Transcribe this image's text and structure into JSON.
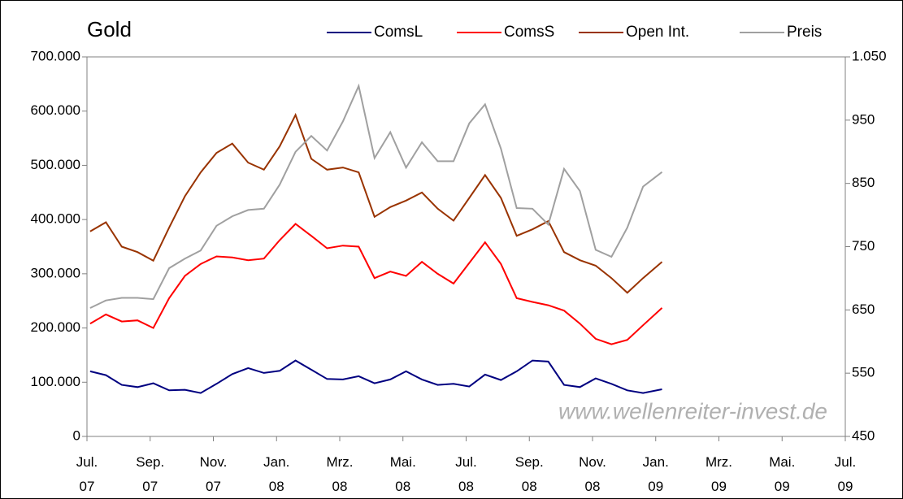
{
  "chart_data": {
    "type": "line",
    "title": "Gold",
    "annotation": "www.wellenreiter-invest.de",
    "x": [
      0.1,
      0.6,
      1.1,
      1.6,
      2.1,
      2.6,
      3.1,
      3.6,
      4.1,
      4.6,
      5.1,
      5.6,
      6.1,
      6.6,
      7.1,
      7.6,
      8.1,
      8.6,
      9.1,
      9.6,
      10.1,
      10.6,
      11.1,
      11.6,
      12.1,
      12.6,
      13.1,
      13.6,
      14.1,
      14.6,
      15.1,
      15.6,
      16.1,
      16.6,
      17.1,
      17.6,
      18.2
    ],
    "series": [
      {
        "name": "ComsL",
        "color": "#000080",
        "values": [
          120000,
          113000,
          95000,
          91000,
          98000,
          85000,
          86000,
          80000,
          97000,
          115000,
          126000,
          117000,
          121000,
          140000,
          123000,
          106000,
          105000,
          111000,
          98000,
          105000,
          120000,
          105000,
          95000,
          97000,
          92000,
          114000,
          104000,
          120000,
          140000,
          138000,
          95000,
          91000,
          107000,
          97000,
          85000,
          80000,
          87000
        ]
      },
      {
        "name": "ComsS",
        "color": "#ff0000",
        "values": [
          208000,
          225000,
          212000,
          214000,
          200000,
          255000,
          296000,
          318000,
          332000,
          330000,
          325000,
          328000,
          362000,
          392000,
          370000,
          347000,
          352000,
          350000,
          292000,
          304000,
          296000,
          322000,
          300000,
          282000,
          320000,
          358000,
          318000,
          255000,
          248000,
          242000,
          232000,
          208000,
          180000,
          170000,
          178000,
          205000,
          237000
        ]
      },
      {
        "name": "Open Int.",
        "color": "#993300",
        "values": [
          378000,
          395000,
          350000,
          340000,
          324000,
          385000,
          443000,
          487000,
          523000,
          540000,
          505000,
          492000,
          535000,
          593000,
          512000,
          492000,
          496000,
          487000,
          405000,
          423000,
          435000,
          450000,
          420000,
          398000,
          440000,
          482000,
          440000,
          370000,
          382000,
          397000,
          340000,
          325000,
          315000,
          292000,
          265000,
          292000,
          322000
        ]
      },
      {
        "name": "Preis",
        "color": "#a0a0a0",
        "axis": "y2",
        "values": [
          653,
          665,
          669,
          669,
          667,
          716,
          731,
          744,
          783,
          798,
          808,
          810,
          848,
          900,
          925,
          902,
          948,
          1004,
          890,
          931,
          875,
          915,
          885,
          885,
          945,
          975,
          905,
          811,
          810,
          785,
          873,
          838,
          745,
          734,
          780,
          845,
          868
        ]
      }
    ],
    "xlim": [
      0,
      24
    ],
    "xticks": [
      {
        "value": 0,
        "label": "Jul.\n07"
      },
      {
        "value": 2,
        "label": "Sep.\n07"
      },
      {
        "value": 4,
        "label": "Nov.\n07"
      },
      {
        "value": 6,
        "label": "Jan.\n08"
      },
      {
        "value": 8,
        "label": "Mrz.\n08"
      },
      {
        "value": 10,
        "label": "Mai.\n08"
      },
      {
        "value": 12,
        "label": "Jul.\n08"
      },
      {
        "value": 14,
        "label": "Sep.\n08"
      },
      {
        "value": 16,
        "label": "Nov.\n08"
      },
      {
        "value": 18,
        "label": "Jan.\n09"
      },
      {
        "value": 20,
        "label": "Mrz.\n09"
      },
      {
        "value": 22,
        "label": "Mai.\n09"
      },
      {
        "value": 24,
        "label": "Jul.\n09"
      }
    ],
    "ylim": [
      0,
      700000
    ],
    "yticks": [
      0,
      {
        "value": 100000,
        "label": "100.000"
      },
      {
        "value": 200000,
        "label": "200.000"
      },
      {
        "value": 300000,
        "label": "300.000"
      },
      {
        "value": 400000,
        "label": "400.000"
      },
      {
        "value": 500000,
        "label": "500.000"
      },
      {
        "value": 600000,
        "label": "600.000"
      },
      {
        "value": 700000,
        "label": "700.000"
      }
    ],
    "y2lim": [
      450,
      1050
    ],
    "y2ticks": [
      450,
      550,
      650,
      750,
      850,
      950,
      {
        "value": 1050,
        "label": "1.050"
      }
    ],
    "grid": false,
    "legend": "top"
  }
}
